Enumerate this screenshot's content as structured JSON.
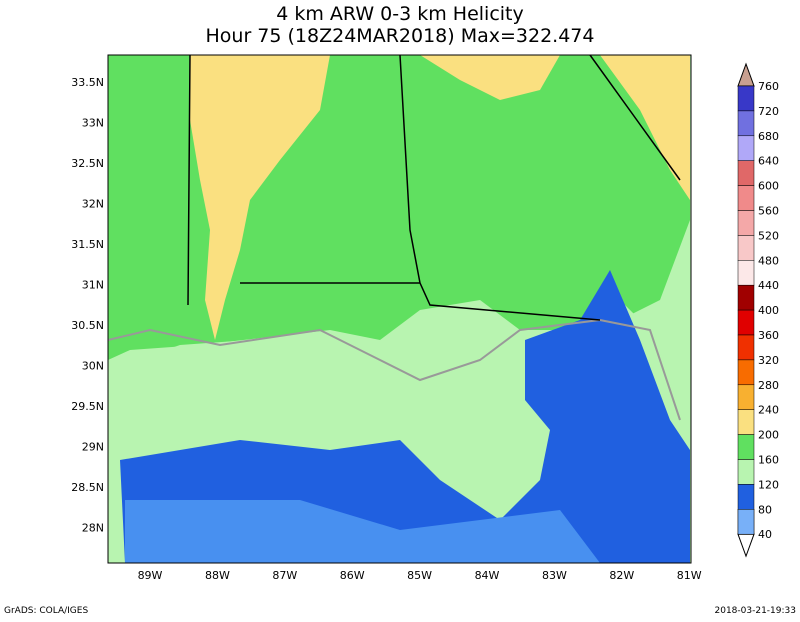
{
  "header": {
    "title": "4 km ARW 0-3 km Helicity",
    "subtitle": "Hour 75 (18Z24MAR2018) Max=322.474"
  },
  "map": {
    "lat_labels": [
      "33.5N",
      "33N",
      "32.5N",
      "32N",
      "31.5N",
      "31N",
      "30.5N",
      "30N",
      "29.5N",
      "29N",
      "28.5N",
      "28N"
    ],
    "lon_labels": [
      "89W",
      "88W",
      "87W",
      "86W",
      "85W",
      "84W",
      "83W",
      "82W",
      "81W"
    ]
  },
  "colorbar": {
    "levels": [
      760,
      720,
      680,
      640,
      600,
      560,
      520,
      480,
      440,
      400,
      360,
      320,
      280,
      240,
      200,
      160,
      120,
      80,
      40
    ],
    "colors": [
      "#3838c8",
      "#7070e0",
      "#b0a8f8",
      "#e06868",
      "#f08a8a",
      "#f4a8a8",
      "#f8c8c8",
      "#fce8e8",
      "#a00000",
      "#e00000",
      "#f03000",
      "#f86c00",
      "#f8b030",
      "#fae080",
      "#60e060",
      "#b8f4b0",
      "#2060e0",
      "#4890f0",
      "#78b0f8"
    ]
  },
  "footer": {
    "left": "GrADS: COLA/IGES",
    "right": "2018-03-21-19:33"
  }
}
